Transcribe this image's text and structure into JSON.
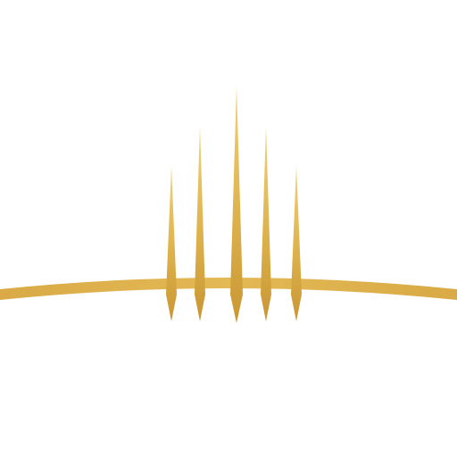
{
  "logo": {
    "icon": "golden-spires-arc-icon",
    "colors": {
      "gold_light": "#f1d27a",
      "gold_mid": "#ddb24c",
      "gold_dark": "#c99634",
      "background": "#ffffff"
    }
  }
}
